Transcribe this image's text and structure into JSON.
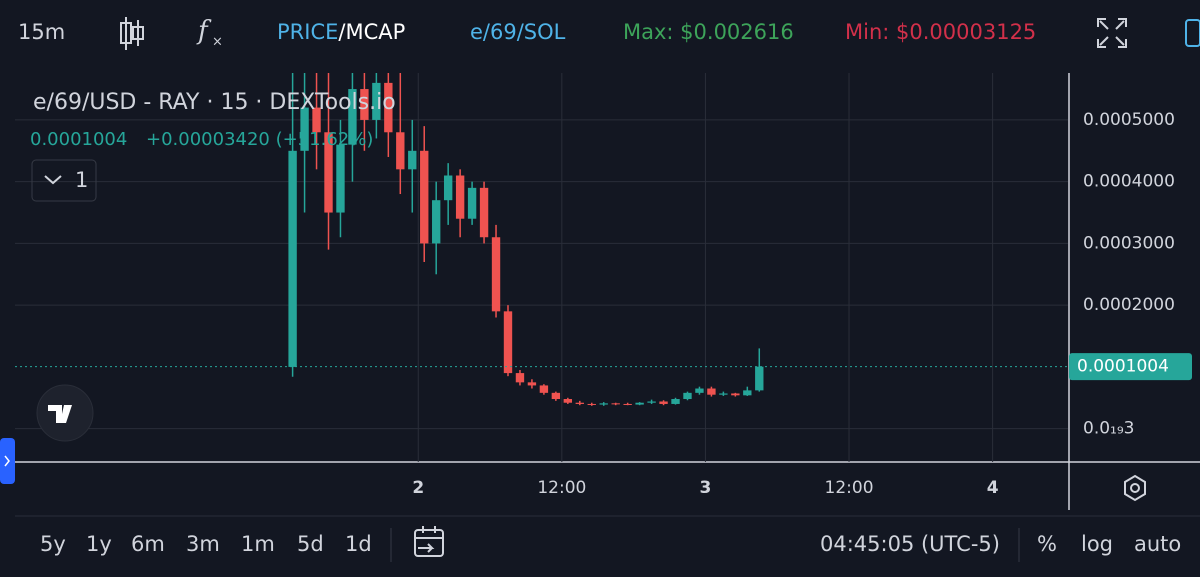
{
  "toolbar": {
    "interval": "15m",
    "price": "PRICE",
    "mcap": "/MCAP",
    "pair": "e/69/SOL",
    "max": "Max: $0.002616",
    "min": "Min: $0.00003125"
  },
  "legend": {
    "symbol": "e/69/USD - RAY · 15 · DEXTools.io",
    "last": "0.0001004",
    "change": "+0.00003420 (+51.62%)",
    "indicators": "1"
  },
  "chart_data": {
    "type": "candlestick",
    "up_color": "#26a69a",
    "down_color": "#ef5350",
    "grid": true,
    "x": [
      13.5,
      14.5,
      15.5,
      16.5,
      17.5,
      18.5,
      19.5,
      20.5,
      21.5,
      22.5,
      23.5,
      24.5,
      25.5,
      26.5,
      27.5,
      28.5,
      29.5,
      30.5,
      31.5,
      32.5,
      33.5,
      34.5,
      35.5,
      36.5,
      37.5,
      38.5,
      39.5,
      40.5,
      41.5,
      42.5,
      43.5,
      44.5,
      45.5,
      46.5,
      47.5,
      48.5,
      49.5,
      50.5,
      51.5,
      52.5
    ],
    "open": [
      0.0001,
      0.00045,
      0.00052,
      0.00048,
      0.00035,
      0.00046,
      0.00055,
      0.0005,
      0.00056,
      0.00048,
      0.00042,
      0.00045,
      0.0003,
      0.00037,
      0.00041,
      0.00034,
      0.00039,
      0.00031,
      0.00019,
      9e-05,
      7.5e-05,
      7e-05,
      5.8e-05,
      4.8e-05,
      4.2e-05,
      4e-05,
      3.9e-05,
      4.1e-05,
      4e-05,
      3.9e-05,
      4.2e-05,
      4.4e-05,
      4e-05,
      4.8e-05,
      5.8e-05,
      6.5e-05,
      5.5e-05,
      5.7e-05,
      5.4e-05,
      6.2e-05
    ],
    "high": [
      0.00058,
      0.00058,
      0.00058,
      0.00058,
      0.0005,
      0.00058,
      0.00058,
      0.00058,
      0.00058,
      0.00058,
      0.0005,
      0.00049,
      0.0004,
      0.00043,
      0.00042,
      0.0004,
      0.0004,
      0.00033,
      0.0002,
      9.5e-05,
      8e-05,
      7.2e-05,
      6e-05,
      5e-05,
      4.5e-05,
      4.2e-05,
      4.3e-05,
      4.2e-05,
      4.2e-05,
      4.3e-05,
      4.7e-05,
      4.6e-05,
      5e-05,
      6e-05,
      6.8e-05,
      6.8e-05,
      6e-05,
      5.8e-05,
      6.8e-05,
      0.00013
    ],
    "low": [
      8.4e-05,
      0.00035,
      0.00042,
      0.00029,
      0.00031,
      0.0004,
      0.00045,
      0.00047,
      0.00044,
      0.00038,
      0.00035,
      0.00027,
      0.00025,
      0.00033,
      0.00031,
      0.00033,
      0.0003,
      0.00018,
      8.5e-05,
      7e-05,
      6.5e-05,
      5.5e-05,
      4.5e-05,
      4e-05,
      3.8e-05,
      3.7e-05,
      3.7e-05,
      3.8e-05,
      3.8e-05,
      3.8e-05,
      4e-05,
      3.8e-05,
      3.9e-05,
      4.6e-05,
      5.5e-05,
      5.2e-05,
      5.3e-05,
      5.2e-05,
      5.3e-05,
      6e-05
    ],
    "close": [
      0.00045,
      0.00052,
      0.00048,
      0.00035,
      0.00046,
      0.00055,
      0.0005,
      0.00056,
      0.00048,
      0.00042,
      0.00045,
      0.0003,
      0.00037,
      0.00041,
      0.00034,
      0.00039,
      0.00031,
      0.00019,
      9e-05,
      7.5e-05,
      7e-05,
      5.8e-05,
      4.8e-05,
      4.2e-05,
      4e-05,
      3.9e-05,
      4.1e-05,
      4e-05,
      3.9e-05,
      4.2e-05,
      4.4e-05,
      4e-05,
      4.8e-05,
      5.8e-05,
      6.5e-05,
      5.5e-05,
      5.7e-05,
      5.4e-05,
      6.2e-05,
      0.0001004
    ],
    "last_price": 0.0001004,
    "xlim": [
      -9.7,
      78.3
    ],
    "xticks": [
      {
        "value": 24,
        "label": "2"
      },
      {
        "value": 36,
        "label": "12:00"
      },
      {
        "value": 48,
        "label": "3"
      },
      {
        "value": 60,
        "label": "12:00"
      },
      {
        "value": 72,
        "label": "4"
      }
    ],
    "ylim": [
      -5.4e-05,
      0.000576
    ],
    "yticks": [
      {
        "value": 0.0005,
        "label": "0.0005000"
      },
      {
        "value": 0.0004,
        "label": "0.0004000"
      },
      {
        "value": 0.0003,
        "label": "0.0003000"
      },
      {
        "value": 0.0002,
        "label": "0.0002000"
      },
      {
        "value": 3e-20,
        "label": "0.0₁₉3"
      }
    ]
  },
  "bottom_bar": {
    "ranges": [
      "5y",
      "1y",
      "6m",
      "3m",
      "1m",
      "5d",
      "1d"
    ],
    "time": "04:45:05 (UTC-5)",
    "percent": "%",
    "log": "log",
    "auto": "auto"
  }
}
